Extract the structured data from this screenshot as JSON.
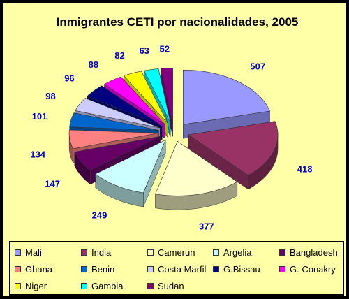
{
  "chart_data": {
    "type": "pie",
    "title": "Inmigrantes CETI por nacionalidades, 2005",
    "categories": [
      "Mali",
      "India",
      "Camerun",
      "Argelia",
      "Bangladesh",
      "Ghana",
      "Benin",
      "Costa Marfil",
      "G.Bissau",
      "G. Conakry",
      "Niger",
      "Gambia",
      "Sudan"
    ],
    "values": [
      507,
      418,
      377,
      249,
      147,
      134,
      101,
      98,
      96,
      88,
      82,
      63,
      52
    ],
    "colors": [
      "#9999FF",
      "#993366",
      "#FFFFCC",
      "#CCFFFF",
      "#660066",
      "#FF8080",
      "#0066CC",
      "#CCCCFF",
      "#000080",
      "#FF00FF",
      "#FFFF00",
      "#00FFFF",
      "#800080"
    ],
    "legend_position": "bottom",
    "exploded": true,
    "three_d": true
  }
}
